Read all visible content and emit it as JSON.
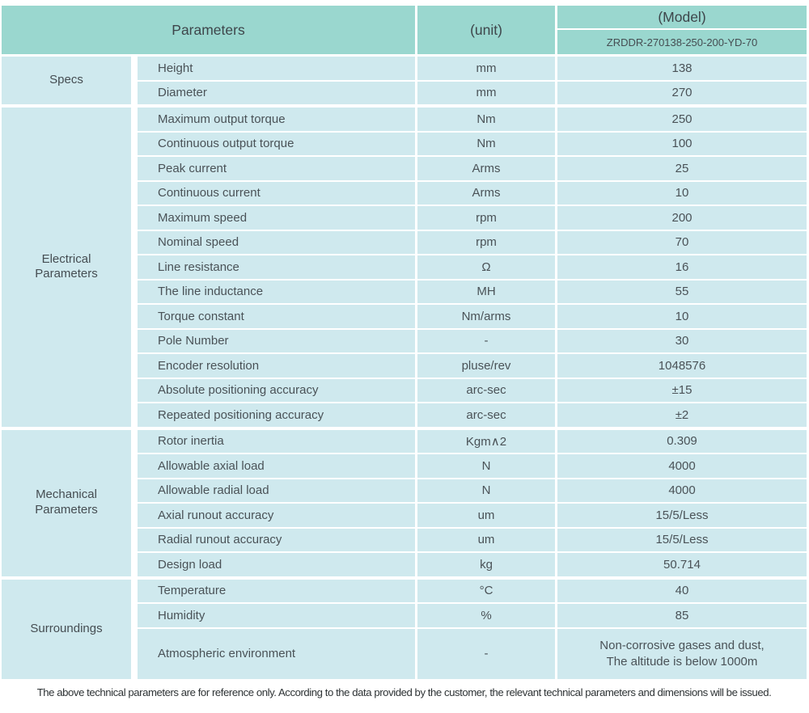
{
  "header": {
    "parameters_label": "Parameters",
    "unit_label": "(unit)",
    "model_label": "(Model)",
    "model_value": "ZRDDR-270138-250-200-YD-70"
  },
  "sections": [
    {
      "category": "Specs",
      "rows": [
        {
          "name": "Height",
          "unit": "mm",
          "value": "138"
        },
        {
          "name": "Diameter",
          "unit": "mm",
          "value": "270"
        }
      ]
    },
    {
      "category": "Electrical\nParameters",
      "rows": [
        {
          "name": "Maximum output torque",
          "unit": "Nm",
          "value": "250"
        },
        {
          "name": "Continuous output torque",
          "unit": "Nm",
          "value": "100"
        },
        {
          "name": "Peak current",
          "unit": "Arms",
          "value": "25"
        },
        {
          "name": "Continuous current",
          "unit": "Arms",
          "value": "10"
        },
        {
          "name": "Maximum speed",
          "unit": "rpm",
          "value": "200"
        },
        {
          "name": "Nominal speed",
          "unit": "rpm",
          "value": "70"
        },
        {
          "name": "Line resistance",
          "unit": "Ω",
          "value": "16"
        },
        {
          "name": "The line inductance",
          "unit": "MH",
          "value": "55"
        },
        {
          "name": "Torque constant",
          "unit": "Nm/arms",
          "value": "10"
        },
        {
          "name": "Pole Number",
          "unit": "-",
          "value": "30"
        },
        {
          "name": "Encoder resolution",
          "unit": "pluse/rev",
          "value": "1048576"
        },
        {
          "name": "Absolute positioning accuracy",
          "unit": "arc-sec",
          "value": "±15"
        },
        {
          "name": "Repeated positioning accuracy",
          "unit": "arc-sec",
          "value": "±2"
        }
      ]
    },
    {
      "category": "Mechanical\nParameters",
      "rows": [
        {
          "name": "Rotor inertia",
          "unit": "Kgm∧2",
          "value": "0.309"
        },
        {
          "name": "Allowable axial load",
          "unit": "N",
          "value": "4000"
        },
        {
          "name": "Allowable radial load",
          "unit": "N",
          "value": "4000"
        },
        {
          "name": "Axial runout accuracy",
          "unit": "um",
          "value": "15/5/Less"
        },
        {
          "name": "Radial runout accuracy",
          "unit": "um",
          "value": "15/5/Less"
        },
        {
          "name": "Design load",
          "unit": "kg",
          "value": "50.714"
        }
      ]
    },
    {
      "category": "Surroundings",
      "rows": [
        {
          "name": "Temperature",
          "unit": "°C",
          "value": "40"
        },
        {
          "name": "Humidity",
          "unit": "%",
          "value": "85"
        },
        {
          "name": "Atmospheric environment",
          "unit": "-",
          "value": "Non-corrosive gases and dust,\nThe altitude is below 1000m"
        }
      ]
    }
  ],
  "footer": {
    "note": "The above technical parameters are for reference only. According to the data provided by the customer, the relevant technical parameters and dimensions will be issued."
  },
  "colors": {
    "header_bg": "#9ad7cf",
    "cell_bg": "#cfe9ee",
    "text": "#4a5257"
  }
}
